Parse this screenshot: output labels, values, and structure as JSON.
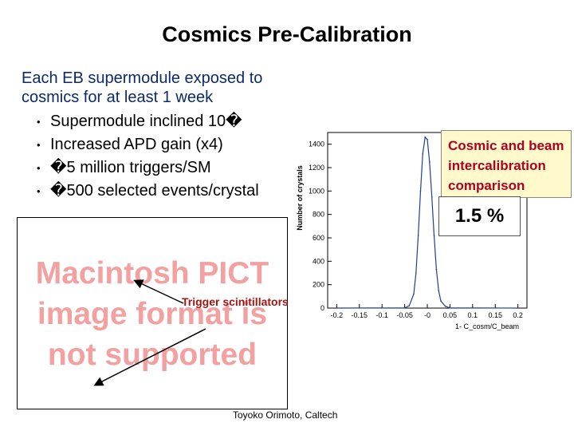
{
  "slide": {
    "title": "Cosmics Pre-Calibration",
    "intro": "Each EB supermodule exposed to cosmics for at least 1 week",
    "bullets": [
      "Supermodule inclined 10�",
      "Increased APD gain (x4)",
      "�5 million triggers/SM",
      "�500 selected events/crystal"
    ],
    "pict_placeholder": "Macintosh PICT image format is not supported",
    "trigger_label": "Trigger scinitillators",
    "callout": "Cosmic and beam intercalibration comparison",
    "result": "1.5 %",
    "footer": "Toyoko Orimoto, Caltech"
  },
  "chart_data": {
    "type": "line",
    "ylabel": "Number of crystals",
    "xlabel": "1- C_cosm/C_beam",
    "xlim": [
      -0.22,
      0.22
    ],
    "ylim": [
      0,
      1500
    ],
    "xticks": [
      "-0.2",
      "-0.15",
      "-0.1",
      "-0.05",
      "-0",
      "0.05",
      "0.1",
      "0.15",
      "0.2"
    ],
    "yticks": [
      "0",
      "200",
      "400",
      "600",
      "800",
      "1000",
      "1200",
      "1400"
    ],
    "x": [
      -0.2,
      -0.05,
      -0.04,
      -0.03,
      -0.025,
      -0.02,
      -0.015,
      -0.01,
      -0.005,
      0,
      0.005,
      0.01,
      0.015,
      0.02,
      0.025,
      0.03,
      0.04,
      0.05,
      0.2
    ],
    "y": [
      0,
      2,
      20,
      120,
      300,
      620,
      1000,
      1320,
      1460,
      1440,
      1250,
      950,
      620,
      330,
      150,
      60,
      15,
      2,
      0
    ],
    "color": "#1f3f9a"
  }
}
